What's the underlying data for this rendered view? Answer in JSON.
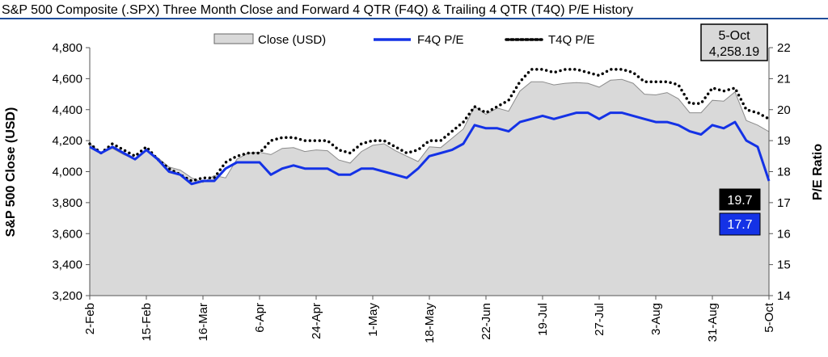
{
  "chart_data": {
    "type": "area",
    "title": "S&P 500 Composite (.SPX) Three Month Close and Forward 4 QTR (F4Q) & Trailing 4 QTR (T4Q) P/E History",
    "ylabel": "S&P 500 Close (USD)",
    "y2label": "P/E Ratio",
    "ylim": [
      3200,
      4800
    ],
    "y2lim": [
      14,
      22
    ],
    "yticks": [
      "3,200",
      "3,400",
      "3,600",
      "3,800",
      "4,000",
      "4,200",
      "4,400",
      "4,600",
      "4,800"
    ],
    "y2ticks": [
      "14",
      "15",
      "16",
      "17",
      "18",
      "19",
      "20",
      "21",
      "22"
    ],
    "xtick_labels": [
      {
        "i": 0,
        "label": "2-Feb"
      },
      {
        "i": 5,
        "label": "15-Feb"
      },
      {
        "i": 10,
        "label": "16-Mar"
      },
      {
        "i": 15,
        "label": "6-Apr"
      },
      {
        "i": 20,
        "label": "24-Apr"
      },
      {
        "i": 25,
        "label": "1-May"
      },
      {
        "i": 30,
        "label": "18-May"
      },
      {
        "i": 35,
        "label": "22-Jun"
      },
      {
        "i": 40,
        "label": "19-Jul"
      },
      {
        "i": 45,
        "label": "27-Jul"
      },
      {
        "i": 50,
        "label": "3-Aug"
      },
      {
        "i": 55,
        "label": "31-Aug"
      },
      {
        "i": 60,
        "label": "5-Oct"
      }
    ],
    "legend": [
      "Close (USD)",
      "F4Q P/E",
      "T4Q P/E"
    ],
    "legend_position": "top-center",
    "date_box": {
      "date": "5-Oct",
      "value": "4,258.19"
    },
    "end_labels": {
      "t4q": "19.7",
      "f4q": "17.7"
    },
    "colors": {
      "close_fill": "#d9d9d9",
      "close_line": "#8c8c8c",
      "f4q": "#1432e6",
      "t4q": "#000000",
      "f4q_label_bg": "#1432e6",
      "t4q_label_bg": "#000000"
    },
    "series": [
      {
        "name": "Close (USD)",
        "axis": "left",
        "values": [
          4180,
          4120,
          4150,
          4110,
          4080,
          4140,
          4090,
          4030,
          4010,
          3960,
          3930,
          3975,
          3960,
          4080,
          4120,
          4125,
          4110,
          4150,
          4155,
          4130,
          4140,
          4135,
          4075,
          4055,
          4130,
          4170,
          4180,
          4135,
          4100,
          4065,
          4160,
          4155,
          4215,
          4275,
          4420,
          4370,
          4410,
          4390,
          4520,
          4580,
          4580,
          4560,
          4570,
          4575,
          4570,
          4545,
          4590,
          4595,
          4570,
          4500,
          4495,
          4510,
          4470,
          4380,
          4380,
          4460,
          4455,
          4515,
          4330,
          4300,
          4258
        ]
      },
      {
        "name": "F4Q P/E",
        "axis": "right",
        "values": [
          18.8,
          18.6,
          18.8,
          18.6,
          18.4,
          18.7,
          18.4,
          18.0,
          17.9,
          17.6,
          17.7,
          17.7,
          18.1,
          18.3,
          18.3,
          18.3,
          17.9,
          18.1,
          18.2,
          18.1,
          18.1,
          18.1,
          17.9,
          17.9,
          18.1,
          18.1,
          18.0,
          17.9,
          17.8,
          18.1,
          18.5,
          18.6,
          18.7,
          18.9,
          19.5,
          19.4,
          19.4,
          19.3,
          19.6,
          19.7,
          19.8,
          19.7,
          19.8,
          19.9,
          19.9,
          19.7,
          19.9,
          19.9,
          19.8,
          19.7,
          19.6,
          19.6,
          19.5,
          19.3,
          19.2,
          19.5,
          19.4,
          19.6,
          19.0,
          18.8,
          17.7
        ]
      },
      {
        "name": "T4Q P/E",
        "axis": "right",
        "values": [
          18.9,
          18.6,
          18.9,
          18.7,
          18.5,
          18.8,
          18.4,
          18.1,
          17.9,
          17.7,
          17.8,
          17.8,
          18.3,
          18.5,
          18.6,
          18.6,
          19.0,
          19.1,
          19.1,
          19.0,
          19.0,
          19.0,
          18.7,
          18.6,
          18.9,
          19.0,
          19.0,
          18.8,
          18.6,
          18.7,
          19.0,
          19.0,
          19.3,
          19.6,
          20.1,
          19.9,
          20.1,
          20.3,
          20.9,
          21.3,
          21.3,
          21.2,
          21.3,
          21.3,
          21.2,
          21.1,
          21.3,
          21.3,
          21.2,
          20.9,
          20.9,
          20.9,
          20.8,
          20.2,
          20.2,
          20.7,
          20.6,
          20.7,
          20.0,
          19.9,
          19.7
        ]
      }
    ]
  }
}
